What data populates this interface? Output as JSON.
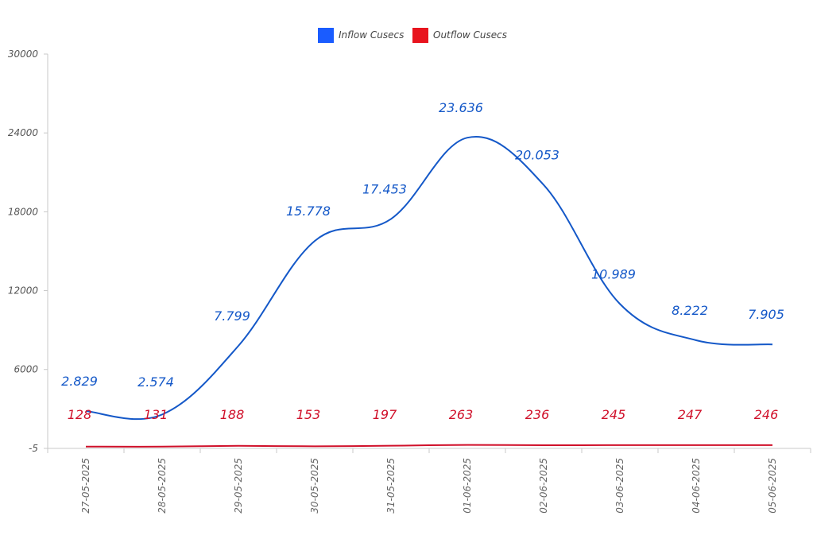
{
  "chart_data": {
    "type": "line",
    "title": "",
    "xlabel": "",
    "ylabel": "",
    "categories": [
      "27-05-2025",
      "28-05-2025",
      "29-05-2025",
      "30-05-2025",
      "31-05-2025",
      "01-06-2025",
      "02-06-2025",
      "03-06-2025",
      "04-06-2025",
      "05-06-2025"
    ],
    "ylim": [
      -5,
      30000
    ],
    "y_ticks": [
      "-5",
      "6000",
      "12000",
      "18000",
      "24000",
      "30000"
    ],
    "y_tick_values": [
      -5,
      6000,
      12000,
      18000,
      24000,
      30000
    ],
    "grid": false,
    "legend_position": "top-center",
    "series": [
      {
        "name": "Inflow Cusecs",
        "color": "#1458c8",
        "values": [
          2829,
          2574,
          7799,
          15778,
          17453,
          23636,
          20053,
          10989,
          8222,
          7905
        ],
        "labels": [
          "2.829",
          "2.574",
          "7.799",
          "15.778",
          "17.453",
          "23.636",
          "20.053",
          "10.989",
          "8.222",
          "7.905"
        ]
      },
      {
        "name": "Outflow Cusecs",
        "color": "#d0102a",
        "values": [
          128,
          131,
          188,
          153,
          197,
          263,
          236,
          245,
          247,
          246
        ],
        "labels": [
          "128",
          "131",
          "188",
          "153",
          "197",
          "263",
          "236",
          "245",
          "247",
          "246"
        ]
      }
    ]
  }
}
